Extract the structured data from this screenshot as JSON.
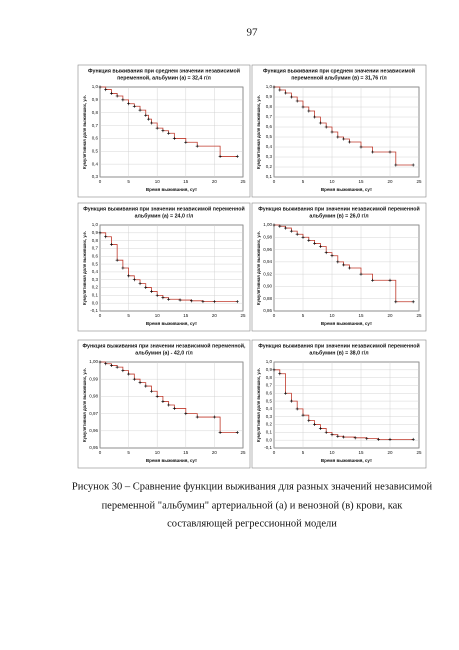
{
  "page_number": "97",
  "caption": [
    "Рисунок 30 – Сравнение функции выживания для разных значений независимой",
    "переменной \"альбумин\" артериальной (а) и венозной (в) крови, как",
    "составляющей регрессионной модели"
  ],
  "chart_data": [
    {
      "type": "line",
      "step": true,
      "color": "#c0392b",
      "title": [
        "Функция выживания при среднем значении независимой",
        "переменной, альбумин (а) = 32,4 г/л"
      ],
      "x_label": "Время выживания, сут",
      "y_label": "Кумулятивная доля выживших, у.е.",
      "x": [
        0,
        1,
        2,
        3,
        4,
        5,
        6,
        7,
        8,
        8.5,
        9,
        10,
        11,
        12,
        13,
        15,
        17,
        21,
        24
      ],
      "values": [
        1.0,
        0.98,
        0.95,
        0.93,
        0.9,
        0.87,
        0.85,
        0.82,
        0.78,
        0.75,
        0.72,
        0.68,
        0.66,
        0.64,
        0.6,
        0.57,
        0.54,
        0.46,
        0.46
      ],
      "xlim": [
        0,
        25
      ],
      "xticks": [
        0,
        5,
        10,
        15,
        20,
        25
      ],
      "ylim": [
        0.3,
        1.0
      ],
      "yticks": [
        {
          "value": 0.3,
          "label": "0,3"
        },
        {
          "value": 0.4,
          "label": "0,4"
        },
        {
          "value": 0.5,
          "label": "0,5"
        },
        {
          "value": 0.6,
          "label": "0,6"
        },
        {
          "value": 0.7,
          "label": "0,7"
        },
        {
          "value": 0.8,
          "label": "0,8"
        },
        {
          "value": 0.9,
          "label": "0,9"
        },
        {
          "value": 1.0,
          "label": "1,0"
        }
      ]
    },
    {
      "type": "line",
      "step": true,
      "color": "#c0392b",
      "title": [
        "Функция выживания при среднем значении независимой",
        "переменной альбумин (в) = 31,76 г/л"
      ],
      "x_label": "Время выживания, сут",
      "y_label": "Кумулятивная доля выживших, у.е.",
      "x": [
        0,
        1,
        2,
        3,
        4,
        5,
        6,
        7,
        8,
        9,
        10,
        11,
        12,
        13,
        15,
        17,
        20,
        21,
        24
      ],
      "values": [
        1.0,
        0.97,
        0.94,
        0.9,
        0.86,
        0.8,
        0.76,
        0.7,
        0.64,
        0.6,
        0.55,
        0.5,
        0.48,
        0.45,
        0.4,
        0.35,
        0.35,
        0.22,
        0.22
      ],
      "xlim": [
        0,
        25
      ],
      "xticks": [
        0,
        5,
        10,
        15,
        20,
        25
      ],
      "ylim": [
        0.1,
        1.0
      ],
      "yticks": [
        {
          "value": 0.1,
          "label": "0,1"
        },
        {
          "value": 0.2,
          "label": "0,2"
        },
        {
          "value": 0.3,
          "label": "0,3"
        },
        {
          "value": 0.4,
          "label": "0,4"
        },
        {
          "value": 0.5,
          "label": "0,5"
        },
        {
          "value": 0.6,
          "label": "0,6"
        },
        {
          "value": 0.7,
          "label": "0,7"
        },
        {
          "value": 0.8,
          "label": "0,8"
        },
        {
          "value": 0.9,
          "label": "0,9"
        },
        {
          "value": 1.0,
          "label": "1,0"
        }
      ]
    },
    {
      "type": "line",
      "step": true,
      "color": "#c0392b",
      "title": [
        "Функция выживания при  значении независимой переменной",
        "альбумин (а) = 24,0 г/л"
      ],
      "x_label": "Время выживания, сут",
      "y_label": "Кумулятивная доля выживших, у.е.",
      "x": [
        0,
        1,
        2,
        3,
        4,
        5,
        6,
        7,
        8,
        9,
        10,
        11,
        12,
        14,
        16,
        18,
        20,
        24
      ],
      "values": [
        0.9,
        0.85,
        0.75,
        0.55,
        0.45,
        0.35,
        0.3,
        0.25,
        0.2,
        0.15,
        0.1,
        0.07,
        0.05,
        0.04,
        0.03,
        0.02,
        0.02,
        0.02
      ],
      "xlim": [
        0,
        25
      ],
      "xticks": [
        0,
        5,
        10,
        15,
        20,
        25
      ],
      "ylim": [
        -0.1,
        1.0
      ],
      "yticks": [
        {
          "value": -0.1,
          "label": "-0,1"
        },
        {
          "value": 0.0,
          "label": "0,0"
        },
        {
          "value": 0.1,
          "label": "0,1"
        },
        {
          "value": 0.2,
          "label": "0,2"
        },
        {
          "value": 0.3,
          "label": "0,3"
        },
        {
          "value": 0.4,
          "label": "0,4"
        },
        {
          "value": 0.5,
          "label": "0,5"
        },
        {
          "value": 0.6,
          "label": "0,6"
        },
        {
          "value": 0.7,
          "label": "0,7"
        },
        {
          "value": 0.8,
          "label": "0,8"
        },
        {
          "value": 0.9,
          "label": "0,9"
        },
        {
          "value": 1.0,
          "label": "1,0"
        }
      ]
    },
    {
      "type": "line",
      "step": true,
      "color": "#c0392b",
      "title": [
        "Функция выживания при   значении независимой переменной",
        "альбумин (в) = 26,0 г/л"
      ],
      "x_label": "Время выживания, сут",
      "y_label": "Кумулятивная доля выживших, у.е.",
      "x": [
        0,
        1,
        2,
        3,
        4,
        5,
        6,
        7,
        8,
        9,
        10,
        11,
        12,
        13,
        15,
        17,
        20,
        21,
        24
      ],
      "values": [
        1.0,
        0.998,
        0.995,
        0.99,
        0.985,
        0.98,
        0.975,
        0.97,
        0.965,
        0.955,
        0.95,
        0.94,
        0.935,
        0.93,
        0.92,
        0.91,
        0.91,
        0.875,
        0.875
      ],
      "xlim": [
        0,
        25
      ],
      "xticks": [
        0,
        5,
        10,
        15,
        20,
        25
      ],
      "ylim": [
        0.86,
        1.0
      ],
      "yticks": [
        {
          "value": 0.86,
          "label": "0,86"
        },
        {
          "value": 0.88,
          "label": "0,88"
        },
        {
          "value": 0.9,
          "label": "0,90"
        },
        {
          "value": 0.92,
          "label": "0,92"
        },
        {
          "value": 0.94,
          "label": "0,94"
        },
        {
          "value": 0.96,
          "label": "0,96"
        },
        {
          "value": 0.98,
          "label": "0,98"
        },
        {
          "value": 1.0,
          "label": "1,00"
        }
      ]
    },
    {
      "type": "line",
      "step": true,
      "color": "#c0392b",
      "title": [
        "Функция выживания при   значении независимой переменной,",
        "альбумин (а) - 42,0 г/л"
      ],
      "x_label": "Время выживания, сут",
      "y_label": "Кумулятивная доля выживших, у.е.",
      "x": [
        0,
        1,
        2,
        3,
        4,
        5,
        6,
        7,
        8,
        9,
        10,
        11,
        12,
        13,
        15,
        17,
        20,
        21,
        24
      ],
      "values": [
        1.0,
        0.999,
        0.998,
        0.997,
        0.995,
        0.993,
        0.99,
        0.988,
        0.986,
        0.983,
        0.98,
        0.977,
        0.975,
        0.973,
        0.97,
        0.968,
        0.968,
        0.959,
        0.959
      ],
      "xlim": [
        0,
        25
      ],
      "xticks": [
        0,
        5,
        10,
        15,
        20,
        25
      ],
      "ylim": [
        0.95,
        1.0
      ],
      "yticks": [
        {
          "value": 0.95,
          "label": "0,95"
        },
        {
          "value": 0.96,
          "label": "0,96"
        },
        {
          "value": 0.97,
          "label": "0,97"
        },
        {
          "value": 0.98,
          "label": "0,98"
        },
        {
          "value": 0.99,
          "label": "0,99"
        },
        {
          "value": 1.0,
          "label": "1,00"
        }
      ]
    },
    {
      "type": "line",
      "step": true,
      "color": "#c0392b",
      "title": [
        "Функция выживания при   значении независимой переменной",
        "альбумин (в) = 38,0 г/л"
      ],
      "x_label": "Время выживания, сут",
      "y_label": "Кумулятивная доля выживших, у.е.",
      "x": [
        0,
        1,
        2,
        3,
        4,
        5,
        6,
        7,
        8,
        9,
        10,
        11,
        12,
        14,
        16,
        18,
        20,
        24
      ],
      "values": [
        0.9,
        0.85,
        0.6,
        0.5,
        0.4,
        0.32,
        0.25,
        0.2,
        0.15,
        0.1,
        0.07,
        0.05,
        0.04,
        0.03,
        0.02,
        0.01,
        0.01,
        0.01
      ],
      "xlim": [
        0,
        25
      ],
      "xticks": [
        0,
        5,
        10,
        15,
        20,
        25
      ],
      "ylim": [
        -0.1,
        1.0
      ],
      "yticks": [
        {
          "value": -0.1,
          "label": "-0,1"
        },
        {
          "value": 0.0,
          "label": "0,0"
        },
        {
          "value": 0.1,
          "label": "0,1"
        },
        {
          "value": 0.2,
          "label": "0,2"
        },
        {
          "value": 0.3,
          "label": "0,3"
        },
        {
          "value": 0.4,
          "label": "0,4"
        },
        {
          "value": 0.5,
          "label": "0,5"
        },
        {
          "value": 0.6,
          "label": "0,6"
        },
        {
          "value": 0.7,
          "label": "0,7"
        },
        {
          "value": 0.8,
          "label": "0,8"
        },
        {
          "value": 0.9,
          "label": "0,9"
        },
        {
          "value": 1.0,
          "label": "1,0"
        }
      ]
    }
  ]
}
